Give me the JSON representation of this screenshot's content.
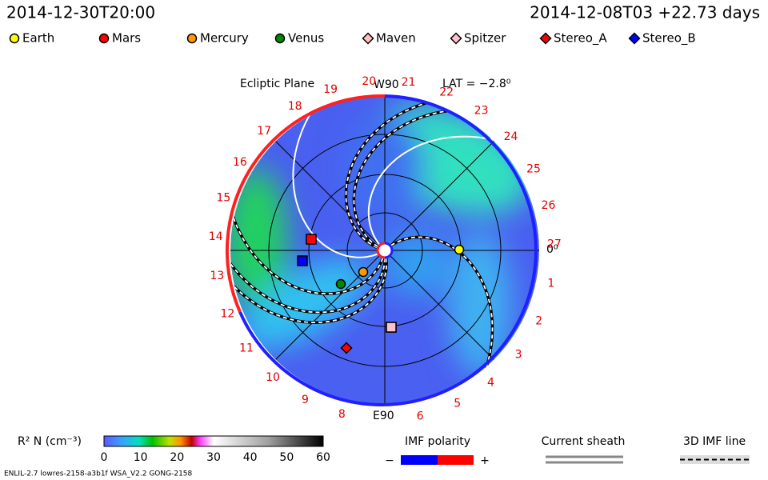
{
  "header": {
    "sim_time": "2014-12-30T20:00",
    "ref_time": "2014-12-08T03 +22.73 days"
  },
  "legend": [
    {
      "label": "Earth",
      "color": "#ffff00",
      "shape": "circle"
    },
    {
      "label": "Mars",
      "color": "#ff0000",
      "shape": "circle"
    },
    {
      "label": "Mercury",
      "color": "#ff9900",
      "shape": "circle"
    },
    {
      "label": "Venus",
      "color": "#008800",
      "shape": "circle"
    },
    {
      "label": "Maven",
      "color": "#ffc0c0",
      "shape": "diamond"
    },
    {
      "label": "Spitzer",
      "color": "#ffc0d0",
      "shape": "diamond"
    },
    {
      "label": "Stereo_A",
      "color": "#ff0000",
      "shape": "diamond"
    },
    {
      "label": "Stereo_B",
      "color": "#0000ff",
      "shape": "diamond"
    }
  ],
  "plot": {
    "title": "Ecliptic Plane",
    "top_label": "W90",
    "lat": "LAT = −2.8⁰",
    "zero_label": "0⁰",
    "bottom_label": "E90",
    "longitudes": [
      "1",
      "2",
      "3",
      "4",
      "5",
      "6",
      "8",
      "9",
      "10",
      "11",
      "12",
      "13",
      "14",
      "15",
      "16",
      "17",
      "18",
      "19",
      "20",
      "21",
      "22",
      "23",
      "24",
      "25",
      "26",
      "27"
    ]
  },
  "colorbar": {
    "label": "R² N (cm⁻³)",
    "ticks": [
      "0",
      "10",
      "20",
      "30",
      "40",
      "50",
      "60"
    ]
  },
  "imf": {
    "label": "IMF polarity",
    "minus": "−",
    "plus": "+"
  },
  "sheath": {
    "label": "Current sheath"
  },
  "imf3d": {
    "label": "3D IMF line"
  },
  "footer": "ENLIL-2.7 lowres-2158-a3b1f WSA_V2.2 GONG-2158"
}
